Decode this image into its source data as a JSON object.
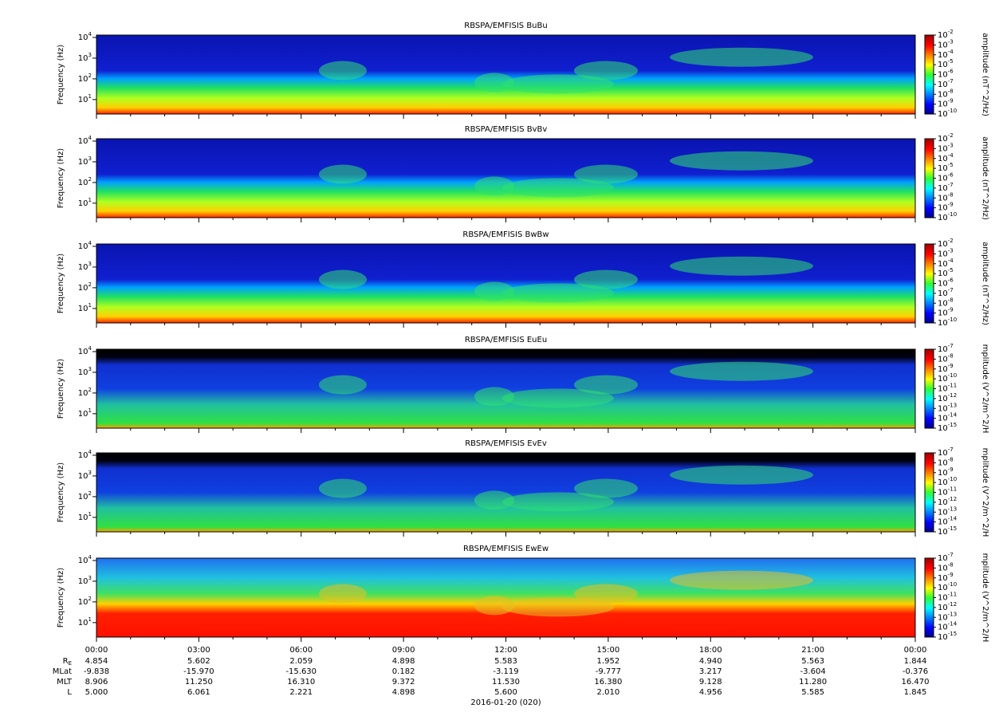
{
  "panels": [
    {
      "title": "RBSPA/EMFISIS  BuBu",
      "kind": "B",
      "ylabel": "Frequency (Hz)",
      "ylog": true,
      "ylim": [
        2,
        13000
      ],
      "yticks": [
        {
          "value": 10,
          "base": "10",
          "exp": "1"
        },
        {
          "value": 100,
          "base": "10",
          "exp": "2"
        },
        {
          "value": 1000,
          "base": "10",
          "exp": "3"
        },
        {
          "value": 10000,
          "base": "10",
          "exp": "4"
        }
      ],
      "colorbar": {
        "label": "amplitude (nT^2/Hz)",
        "clim": [
          1e-10,
          0.01
        ],
        "ticks": [
          {
            "value": 0.01,
            "base": "10",
            "exp": "-2"
          },
          {
            "value": 0.001,
            "base": "10",
            "exp": "-3"
          },
          {
            "value": 0.0001,
            "base": "10",
            "exp": "-4"
          },
          {
            "value": 1e-05,
            "base": "10",
            "exp": "-5"
          },
          {
            "value": 1e-06,
            "base": "10",
            "exp": "-6"
          },
          {
            "value": 1e-07,
            "base": "10",
            "exp": "-7"
          },
          {
            "value": 1e-08,
            "base": "10",
            "exp": "-8"
          },
          {
            "value": 1e-09,
            "base": "10",
            "exp": "-9"
          },
          {
            "value": 1e-10,
            "base": "10",
            "exp": "-10"
          }
        ]
      }
    },
    {
      "title": "RBSPA/EMFISIS  BvBv",
      "kind": "B",
      "ylabel": "Frequency (Hz)",
      "ylog": true,
      "ylim": [
        2,
        13000
      ],
      "yticks": [
        {
          "value": 10,
          "base": "10",
          "exp": "1"
        },
        {
          "value": 100,
          "base": "10",
          "exp": "2"
        },
        {
          "value": 1000,
          "base": "10",
          "exp": "3"
        },
        {
          "value": 10000,
          "base": "10",
          "exp": "4"
        }
      ],
      "colorbar": {
        "label": "amplitude (nT^2/Hz)",
        "clim": [
          1e-10,
          0.01
        ],
        "ticks": [
          {
            "value": 0.01,
            "base": "10",
            "exp": "-2"
          },
          {
            "value": 0.001,
            "base": "10",
            "exp": "-3"
          },
          {
            "value": 0.0001,
            "base": "10",
            "exp": "-4"
          },
          {
            "value": 1e-05,
            "base": "10",
            "exp": "-5"
          },
          {
            "value": 1e-06,
            "base": "10",
            "exp": "-6"
          },
          {
            "value": 1e-07,
            "base": "10",
            "exp": "-7"
          },
          {
            "value": 1e-08,
            "base": "10",
            "exp": "-8"
          },
          {
            "value": 1e-09,
            "base": "10",
            "exp": "-9"
          },
          {
            "value": 1e-10,
            "base": "10",
            "exp": "-10"
          }
        ]
      }
    },
    {
      "title": "RBSPA/EMFISIS  BwBw",
      "kind": "B",
      "ylabel": "Frequency (Hz)",
      "ylog": true,
      "ylim": [
        2,
        13000
      ],
      "yticks": [
        {
          "value": 10,
          "base": "10",
          "exp": "1"
        },
        {
          "value": 100,
          "base": "10",
          "exp": "2"
        },
        {
          "value": 1000,
          "base": "10",
          "exp": "3"
        },
        {
          "value": 10000,
          "base": "10",
          "exp": "4"
        }
      ],
      "colorbar": {
        "label": "amplitude (nT^2/Hz)",
        "clim": [
          1e-10,
          0.01
        ],
        "ticks": [
          {
            "value": 0.01,
            "base": "10",
            "exp": "-2"
          },
          {
            "value": 0.001,
            "base": "10",
            "exp": "-3"
          },
          {
            "value": 0.0001,
            "base": "10",
            "exp": "-4"
          },
          {
            "value": 1e-05,
            "base": "10",
            "exp": "-5"
          },
          {
            "value": 1e-06,
            "base": "10",
            "exp": "-6"
          },
          {
            "value": 1e-07,
            "base": "10",
            "exp": "-7"
          },
          {
            "value": 1e-08,
            "base": "10",
            "exp": "-8"
          },
          {
            "value": 1e-09,
            "base": "10",
            "exp": "-9"
          },
          {
            "value": 1e-10,
            "base": "10",
            "exp": "-10"
          }
        ]
      }
    },
    {
      "title": "RBSPA/EMFISIS  EuEu",
      "kind": "E",
      "ylabel": "Frequency (Hz)",
      "ylog": true,
      "ylim": [
        2,
        13000
      ],
      "yticks": [
        {
          "value": 10,
          "base": "10",
          "exp": "1"
        },
        {
          "value": 100,
          "base": "10",
          "exp": "2"
        },
        {
          "value": 1000,
          "base": "10",
          "exp": "3"
        },
        {
          "value": 10000,
          "base": "10",
          "exp": "4"
        }
      ],
      "colorbar": {
        "label": "mplitude (V^2/m^2/H",
        "clim": [
          1e-15,
          1e-07
        ],
        "ticks": [
          {
            "value": 1e-07,
            "base": "10",
            "exp": "-7"
          },
          {
            "value": 1e-08,
            "base": "10",
            "exp": "-8"
          },
          {
            "value": 1e-09,
            "base": "10",
            "exp": "-9"
          },
          {
            "value": 1e-10,
            "base": "10",
            "exp": "-10"
          },
          {
            "value": 1e-11,
            "base": "10",
            "exp": "-11"
          },
          {
            "value": 1e-12,
            "base": "10",
            "exp": "-12"
          },
          {
            "value": 1e-13,
            "base": "10",
            "exp": "-13"
          },
          {
            "value": 1e-14,
            "base": "10",
            "exp": "-14"
          },
          {
            "value": 1e-15,
            "base": "10",
            "exp": "-15"
          }
        ]
      }
    },
    {
      "title": "RBSPA/EMFISIS  EvEv",
      "kind": "E",
      "ylabel": "Frequency (Hz)",
      "ylog": true,
      "ylim": [
        2,
        13000
      ],
      "yticks": [
        {
          "value": 10,
          "base": "10",
          "exp": "1"
        },
        {
          "value": 100,
          "base": "10",
          "exp": "2"
        },
        {
          "value": 1000,
          "base": "10",
          "exp": "3"
        },
        {
          "value": 10000,
          "base": "10",
          "exp": "4"
        }
      ],
      "colorbar": {
        "label": "mplitude (V^2/m^2/H",
        "clim": [
          1e-15,
          1e-07
        ],
        "ticks": [
          {
            "value": 1e-07,
            "base": "10",
            "exp": "-7"
          },
          {
            "value": 1e-08,
            "base": "10",
            "exp": "-8"
          },
          {
            "value": 1e-09,
            "base": "10",
            "exp": "-9"
          },
          {
            "value": 1e-10,
            "base": "10",
            "exp": "-10"
          },
          {
            "value": 1e-11,
            "base": "10",
            "exp": "-11"
          },
          {
            "value": 1e-12,
            "base": "10",
            "exp": "-12"
          },
          {
            "value": 1e-13,
            "base": "10",
            "exp": "-13"
          },
          {
            "value": 1e-14,
            "base": "10",
            "exp": "-14"
          },
          {
            "value": 1e-15,
            "base": "10",
            "exp": "-15"
          }
        ]
      }
    },
    {
      "title": "RBSPA/EMFISIS  EwEw",
      "kind": "W",
      "ylabel": "Frequency (Hz)",
      "ylog": true,
      "ylim": [
        2,
        13000
      ],
      "yticks": [
        {
          "value": 10,
          "base": "10",
          "exp": "1"
        },
        {
          "value": 100,
          "base": "10",
          "exp": "2"
        },
        {
          "value": 1000,
          "base": "10",
          "exp": "3"
        },
        {
          "value": 10000,
          "base": "10",
          "exp": "4"
        }
      ],
      "colorbar": {
        "label": "mplitude (V^2/m^2/H",
        "clim": [
          1e-15,
          1e-07
        ],
        "ticks": [
          {
            "value": 1e-07,
            "base": "10",
            "exp": "-7"
          },
          {
            "value": 1e-08,
            "base": "10",
            "exp": "-8"
          },
          {
            "value": 1e-09,
            "base": "10",
            "exp": "-9"
          },
          {
            "value": 1e-10,
            "base": "10",
            "exp": "-10"
          },
          {
            "value": 1e-11,
            "base": "10",
            "exp": "-11"
          },
          {
            "value": 1e-12,
            "base": "10",
            "exp": "-12"
          },
          {
            "value": 1e-13,
            "base": "10",
            "exp": "-13"
          },
          {
            "value": 1e-14,
            "base": "10",
            "exp": "-14"
          },
          {
            "value": 1e-15,
            "base": "10",
            "exp": "-15"
          }
        ]
      }
    }
  ],
  "xaxis": {
    "ticks": [
      "00:00",
      "03:00",
      "06:00",
      "09:00",
      "12:00",
      "15:00",
      "18:00",
      "21:00",
      "00:00"
    ],
    "rows": [
      {
        "label": "R",
        "sub": "E",
        "values": [
          "4.854",
          "5.602",
          "2.059",
          "4.898",
          "5.583",
          "1.952",
          "4.940",
          "5.563",
          "1.844"
        ]
      },
      {
        "label": "MLat",
        "values": [
          "-9.838",
          "-15.970",
          "-15.630",
          "0.182",
          "-3.119",
          "-9.777",
          "3.217",
          "-3.604",
          "-0.376"
        ]
      },
      {
        "label": "MLT",
        "values": [
          "8.906",
          "11.250",
          "16.310",
          "9.372",
          "11.530",
          "16.380",
          "9.128",
          "11.280",
          "16.470"
        ]
      },
      {
        "label": "L",
        "values": [
          "5.000",
          "6.061",
          "2.221",
          "4.898",
          "5.600",
          "2.010",
          "4.956",
          "5.585",
          "1.845"
        ]
      }
    ],
    "date": "2016-01-20 (020)"
  }
}
